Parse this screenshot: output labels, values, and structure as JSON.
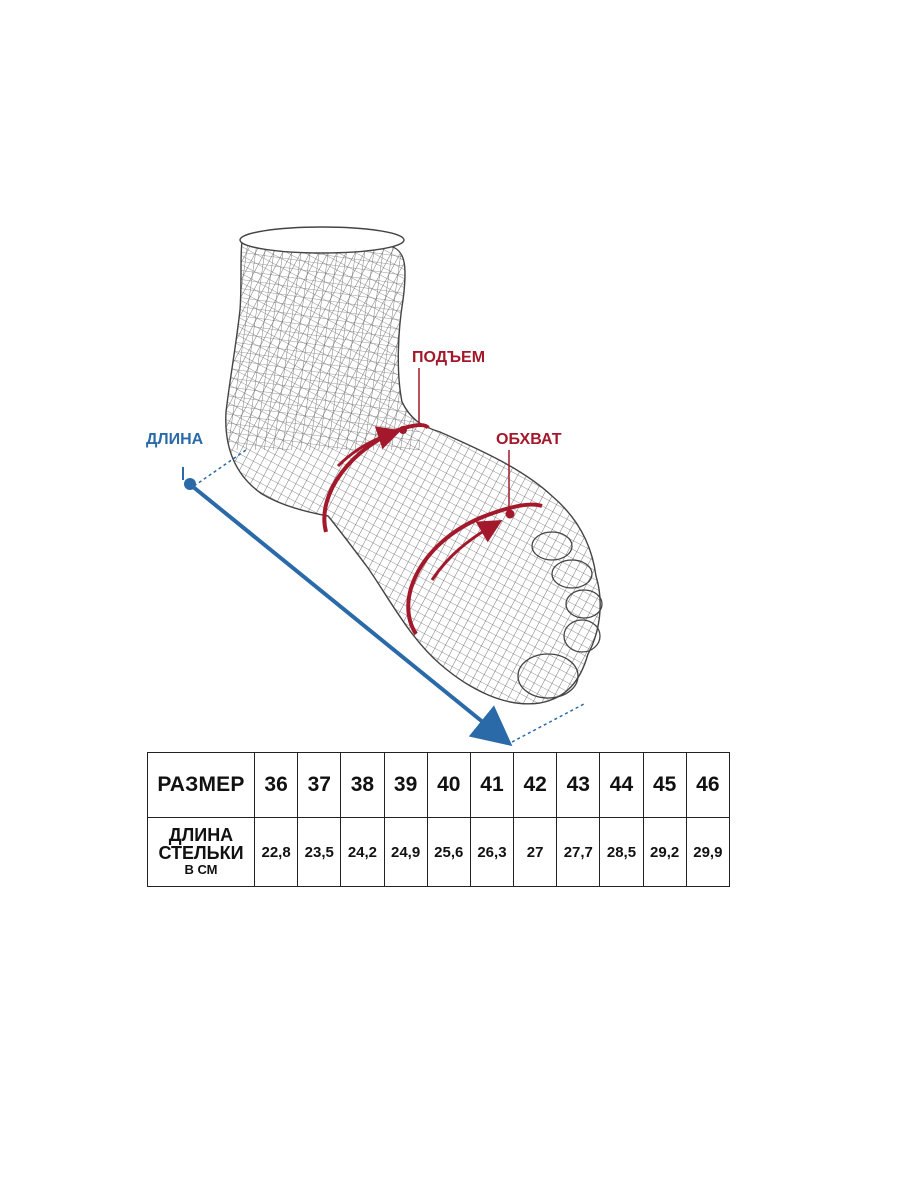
{
  "labels": {
    "length": "ДЛИНА",
    "instep": "ПОДЪЕМ",
    "girth": "ОБХВАТ"
  },
  "colors": {
    "length": "#2a6aa8",
    "instep": "#a3182a",
    "girth": "#a3182a",
    "wireframe": "#555555"
  },
  "table": {
    "size_header": "РАЗМЕР",
    "length_header_line1": "ДЛИНА",
    "length_header_line2": "СТЕЛЬКИ",
    "length_header_line3": "В СМ",
    "sizes": [
      "36",
      "37",
      "38",
      "39",
      "40",
      "41",
      "42",
      "43",
      "44",
      "45",
      "46"
    ],
    "lengths": [
      "22,8",
      "23,5",
      "24,2",
      "24,9",
      "25,6",
      "26,3",
      "27",
      "27,7",
      "28,5",
      "29,2",
      "29,9"
    ]
  }
}
